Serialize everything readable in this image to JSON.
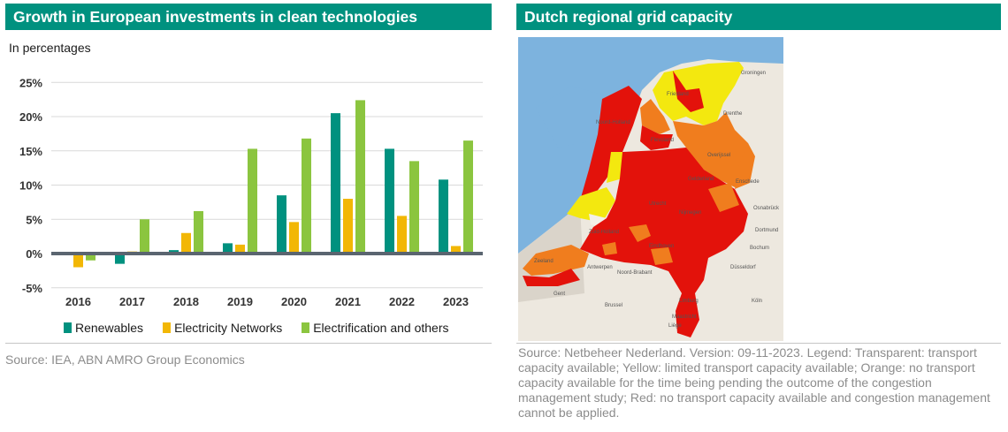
{
  "left_panel": {
    "title": "Growth in European investments in clean technologies",
    "unit_label": "In percentages",
    "source": "Source: IEA, ABN AMRO Group Economics"
  },
  "right_panel": {
    "title": "Dutch regional grid capacity",
    "source": "Source: Netbeheer Nederland. Version: 09-11-2023. Legend: Transparent: transport capacity available; Yellow: limited transport capacity available; Orange: no transport capacity available for the time being pending the outcome of the congestion management study; Red: no transport capacity available and congestion management cannot be applied.",
    "map_labels": [
      "Groningen",
      "Friesland",
      "Drenthe",
      "Overijssel",
      "Gelderland",
      "Utrecht",
      "Noord-Holland",
      "Zuid-Holland",
      "Zeeland",
      "Noord-Brabant",
      "Limburg",
      "Flevoland",
      "Dortmund",
      "Düsseldorf",
      "Köln",
      "Bochum",
      "Antwerpen",
      "Brussel",
      "Gent",
      "Liège",
      "Maastricht",
      "Eindhoven",
      "Nijmegen",
      "Enschede",
      "Osnabrück"
    ],
    "colors": {
      "sea": "#7db3de",
      "land_outside": "#ede8df",
      "transparent_area": "#f3f0e8",
      "yellow": "#f3e80f",
      "orange": "#f07d1e",
      "red": "#e3120b"
    }
  },
  "chart_data": {
    "type": "bar",
    "title": "Growth in European investments in clean technologies",
    "ylabel": "In percentages",
    "xlabel": "",
    "categories": [
      "2016",
      "2017",
      "2018",
      "2019",
      "2020",
      "2021",
      "2022",
      "2023"
    ],
    "series": [
      {
        "name": "Renewables",
        "color": "#00917f",
        "values": [
          0.0,
          -1.5,
          0.5,
          1.5,
          8.5,
          20.5,
          15.3,
          10.8
        ]
      },
      {
        "name": "Electricity Networks",
        "color": "#f2b705",
        "values": [
          -2.0,
          0.3,
          3.0,
          1.3,
          4.6,
          8.0,
          5.5,
          1.1
        ]
      },
      {
        "name": "Electrification and others",
        "color": "#8bc53f",
        "values": [
          -1.0,
          5.0,
          6.2,
          15.3,
          16.8,
          22.4,
          13.5,
          16.5
        ]
      }
    ],
    "y_ticks": [
      "25%",
      "20%",
      "15%",
      "10%",
      "5%",
      "0%",
      "-5%"
    ],
    "y_tick_values": [
      25,
      20,
      15,
      10,
      5,
      0,
      -5
    ],
    "ylim": [
      -5,
      25
    ],
    "grid": true,
    "legend_position": "bottom"
  }
}
